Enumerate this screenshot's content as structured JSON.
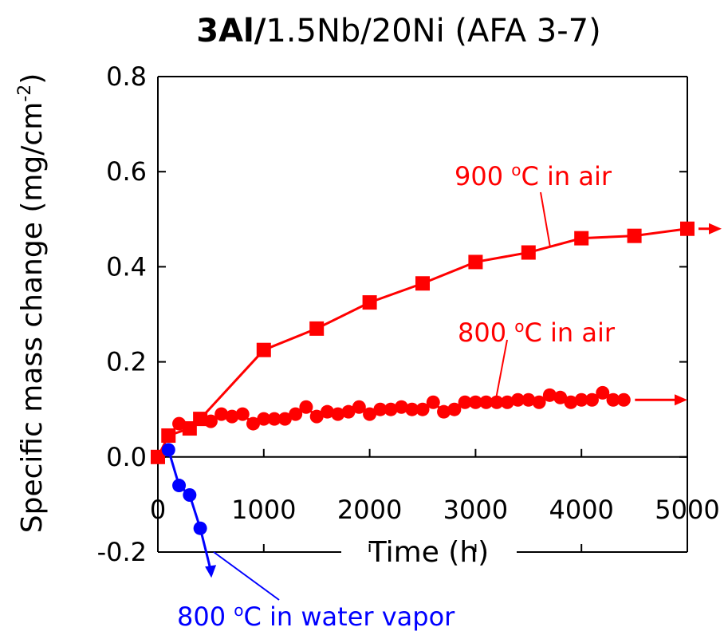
{
  "chart_data": {
    "type": "line",
    "title_bold": "3Al/",
    "title_rest": "1.5Nb/20Ni (AFA 3-7)",
    "xlabel": "Time (h)",
    "ylabel_main": "Specific mass change (mg/cm",
    "ylabel_sup": "-2",
    "ylabel_end": ")",
    "xlim": [
      0,
      5000
    ],
    "ylim": [
      -0.2,
      0.8
    ],
    "x_ticks": [
      "0",
      "1000",
      "2000",
      "3000",
      "4000",
      "5000"
    ],
    "y_ticks": [
      "-0.2",
      "0.0",
      "0.2",
      "0.4",
      "0.6",
      "0.8"
    ],
    "grid": false,
    "series": [
      {
        "label_pre": "900 ",
        "label_sup": "o",
        "label_post": "C in air",
        "color": "#ff0000",
        "marker": "square",
        "continues_arrow": true,
        "x": [
          0,
          100,
          300,
          400,
          1000,
          1500,
          2000,
          2500,
          3000,
          3500,
          4000,
          4500,
          5000
        ],
        "y": [
          0.0,
          0.045,
          0.06,
          0.08,
          0.225,
          0.27,
          0.325,
          0.365,
          0.41,
          0.43,
          0.46,
          0.465,
          0.48
        ]
      },
      {
        "label_pre": "800 ",
        "label_sup": "o",
        "label_post": "C in air",
        "color": "#ff0000",
        "marker": "circle",
        "continues_arrow": true,
        "x": [
          100,
          200,
          300,
          400,
          500,
          600,
          700,
          800,
          900,
          1000,
          1100,
          1200,
          1300,
          1400,
          1500,
          1600,
          1700,
          1800,
          1900,
          2000,
          2100,
          2200,
          2300,
          2400,
          2500,
          2600,
          2700,
          2800,
          2900,
          3000,
          3100,
          3200,
          3300,
          3400,
          3500,
          3600,
          3700,
          3800,
          3900,
          4000,
          4100,
          4200,
          4300,
          4400
        ],
        "y": [
          0.045,
          0.07,
          0.06,
          0.08,
          0.075,
          0.09,
          0.085,
          0.09,
          0.07,
          0.08,
          0.08,
          0.08,
          0.09,
          0.105,
          0.085,
          0.095,
          0.09,
          0.095,
          0.105,
          0.09,
          0.1,
          0.1,
          0.105,
          0.1,
          0.1,
          0.115,
          0.095,
          0.1,
          0.115,
          0.115,
          0.115,
          0.115,
          0.115,
          0.12,
          0.12,
          0.115,
          0.13,
          0.125,
          0.115,
          0.12,
          0.12,
          0.135,
          0.12,
          0.12
        ]
      },
      {
        "label_pre": "800 ",
        "label_sup": "o",
        "label_post": "C in water vapor",
        "color": "#0000ff",
        "marker": "circle",
        "continues_arrow": true,
        "x": [
          100,
          200,
          300,
          400
        ],
        "y": [
          0.015,
          -0.06,
          -0.08,
          -0.15
        ]
      }
    ]
  }
}
